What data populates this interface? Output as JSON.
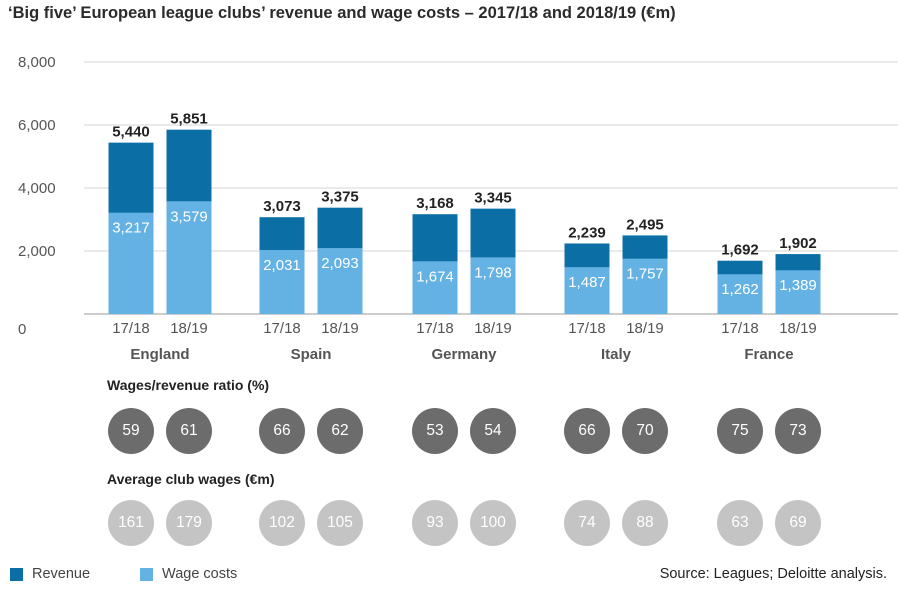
{
  "title": "‘Big five’ European league clubs’ revenue and wage costs – 2017/18 and 2018/19 (€m)",
  "colors": {
    "revenue": "#0b6fa6",
    "wages": "#64b1e3",
    "ratio_circle": "#6c6c6c",
    "wages_circle": "#c4c4c4"
  },
  "chart_data": {
    "type": "bar",
    "title": "‘Big five’ European league clubs’ revenue and wage costs – 2017/18 and 2018/19 (€m)",
    "y_ticks": [
      "0",
      "2,000",
      "4,000",
      "6,000",
      "8,000"
    ],
    "ylim": [
      0,
      8000
    ],
    "grid": true,
    "groups": [
      {
        "name": "England",
        "seasons": [
          {
            "label": "17/18",
            "revenue": 5440,
            "revenue_label": "5,440",
            "wages": 3217,
            "wages_label": "3,217"
          },
          {
            "label": "18/19",
            "revenue": 5851,
            "revenue_label": "5,851",
            "wages": 3579,
            "wages_label": "3,579"
          }
        ]
      },
      {
        "name": "Spain",
        "seasons": [
          {
            "label": "17/18",
            "revenue": 3073,
            "revenue_label": "3,073",
            "wages": 2031,
            "wages_label": "2,031"
          },
          {
            "label": "18/19",
            "revenue": 3375,
            "revenue_label": "3,375",
            "wages": 2093,
            "wages_label": "2,093"
          }
        ]
      },
      {
        "name": "Germany",
        "seasons": [
          {
            "label": "17/18",
            "revenue": 3168,
            "revenue_label": "3,168",
            "wages": 1674,
            "wages_label": "1,674"
          },
          {
            "label": "18/19",
            "revenue": 3345,
            "revenue_label": "3,345",
            "wages": 1798,
            "wages_label": "1,798"
          }
        ]
      },
      {
        "name": "Italy",
        "seasons": [
          {
            "label": "17/18",
            "revenue": 2239,
            "revenue_label": "2,239",
            "wages": 1487,
            "wages_label": "1,487"
          },
          {
            "label": "18/19",
            "revenue": 2495,
            "revenue_label": "2,495",
            "wages": 1757,
            "wages_label": "1,757"
          }
        ]
      },
      {
        "name": "France",
        "seasons": [
          {
            "label": "17/18",
            "revenue": 1692,
            "revenue_label": "1,692",
            "wages": 1262,
            "wages_label": "1,262"
          },
          {
            "label": "18/19",
            "revenue": 1902,
            "revenue_label": "1,902",
            "wages": 1389,
            "wages_label": "1,389"
          }
        ]
      }
    ],
    "series": [
      {
        "name": "Revenue",
        "values": [
          5440,
          5851,
          3073,
          3375,
          3168,
          3345,
          2239,
          2495,
          1692,
          1902
        ]
      },
      {
        "name": "Wage costs",
        "values": [
          3217,
          3579,
          2031,
          2093,
          1674,
          1798,
          1487,
          1757,
          1262,
          1389
        ]
      }
    ],
    "wages_revenue_ratio": {
      "label": "Wages/revenue ratio (%)",
      "values": [
        "59",
        "61",
        "66",
        "62",
        "53",
        "54",
        "66",
        "70",
        "75",
        "73"
      ]
    },
    "average_club_wages": {
      "label": "Average club wages (€m)",
      "values": [
        "161",
        "179",
        "102",
        "105",
        "93",
        "100",
        "74",
        "88",
        "63",
        "69"
      ]
    }
  },
  "legend": {
    "revenue": "Revenue",
    "wages": "Wage costs"
  },
  "source": "Source: Leagues; Deloitte analysis."
}
